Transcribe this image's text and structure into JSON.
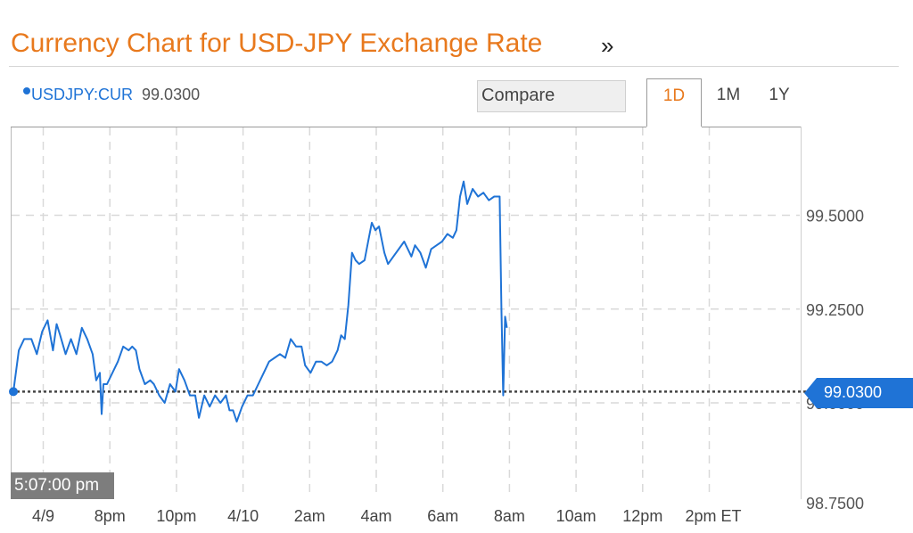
{
  "header": {
    "title": "Currency Chart for USD-JPY Exchange Rate",
    "more_icon": "double-chevron-right-icon"
  },
  "legend": {
    "symbol": "USDJPY:CUR",
    "value": "99.0300"
  },
  "toolbar": {
    "compare_label": "Compare",
    "tabs": [
      {
        "label": "1D",
        "active": true
      },
      {
        "label": "1M",
        "active": false
      },
      {
        "label": "1Y",
        "active": false
      }
    ]
  },
  "time_badge": "5:07:00 pm",
  "last_price": "99.0300",
  "colors": {
    "accent": "#e8791d",
    "series": "#1f73d6",
    "grid": "#d9d9d9"
  },
  "chart_data": {
    "type": "line",
    "title": "",
    "xlabel": "",
    "ylabel": "",
    "x_ticks": [
      "4/9",
      "8pm",
      "10pm",
      "4/10",
      "2am",
      "4am",
      "6am",
      "8am",
      "10am",
      "12pm",
      "2pm ET"
    ],
    "y_ticks": [
      "99.5000",
      "99.2500",
      "99.0000",
      "98.7500"
    ],
    "ylim": [
      98.75,
      99.7
    ],
    "grid": true,
    "reference_line": 99.03,
    "series": [
      {
        "values": [
          [
            0,
            99.03
          ],
          [
            0.15,
            99.14
          ],
          [
            0.3,
            99.17
          ],
          [
            0.5,
            99.17
          ],
          [
            0.65,
            99.13
          ],
          [
            0.8,
            99.19
          ],
          [
            0.95,
            99.22
          ],
          [
            1.1,
            99.14
          ],
          [
            1.2,
            99.21
          ],
          [
            1.3,
            99.18
          ],
          [
            1.45,
            99.13
          ],
          [
            1.6,
            99.17
          ],
          [
            1.75,
            99.13
          ],
          [
            1.9,
            99.2
          ],
          [
            2.05,
            99.17
          ],
          [
            2.2,
            99.13
          ],
          [
            2.3,
            99.06
          ],
          [
            2.4,
            99.08
          ],
          [
            2.45,
            98.97
          ],
          [
            2.5,
            99.05
          ],
          [
            2.6,
            99.05
          ],
          [
            2.75,
            99.08
          ],
          [
            2.9,
            99.11
          ],
          [
            3.05,
            99.15
          ],
          [
            3.2,
            99.14
          ],
          [
            3.3,
            99.15
          ],
          [
            3.4,
            99.14
          ],
          [
            3.5,
            99.09
          ],
          [
            3.65,
            99.05
          ],
          [
            3.8,
            99.06
          ],
          [
            3.9,
            99.05
          ],
          [
            4.05,
            99.02
          ],
          [
            4.2,
            99.0
          ],
          [
            4.35,
            99.05
          ],
          [
            4.5,
            99.03
          ],
          [
            4.6,
            99.09
          ],
          [
            4.75,
            99.06
          ],
          [
            4.9,
            99.02
          ],
          [
            5.05,
            99.02
          ],
          [
            5.15,
            98.96
          ],
          [
            5.3,
            99.02
          ],
          [
            5.45,
            98.99
          ],
          [
            5.6,
            99.02
          ],
          [
            5.75,
            99.0
          ],
          [
            5.9,
            99.02
          ],
          [
            6.0,
            98.98
          ],
          [
            6.1,
            98.98
          ],
          [
            6.2,
            98.95
          ],
          [
            6.35,
            98.99
          ],
          [
            6.5,
            99.02
          ],
          [
            6.65,
            99.02
          ],
          [
            6.8,
            99.05
          ],
          [
            6.95,
            99.08
          ],
          [
            7.1,
            99.11
          ],
          [
            7.25,
            99.12
          ],
          [
            7.4,
            99.13
          ],
          [
            7.55,
            99.12
          ],
          [
            7.7,
            99.17
          ],
          [
            7.85,
            99.15
          ],
          [
            8.0,
            99.15
          ],
          [
            8.1,
            99.1
          ],
          [
            8.25,
            99.08
          ],
          [
            8.4,
            99.11
          ],
          [
            8.55,
            99.11
          ],
          [
            8.7,
            99.1
          ],
          [
            8.85,
            99.11
          ],
          [
            9.0,
            99.14
          ],
          [
            9.1,
            99.18
          ],
          [
            9.2,
            99.17
          ],
          [
            9.3,
            99.26
          ],
          [
            9.4,
            99.4
          ],
          [
            9.5,
            99.38
          ],
          [
            9.6,
            99.37
          ],
          [
            9.75,
            99.38
          ],
          [
            9.85,
            99.43
          ],
          [
            9.95,
            99.48
          ],
          [
            10.05,
            99.46
          ],
          [
            10.15,
            99.47
          ],
          [
            10.3,
            99.4
          ],
          [
            10.4,
            99.37
          ],
          [
            10.55,
            99.39
          ],
          [
            10.7,
            99.41
          ],
          [
            10.85,
            99.43
          ],
          [
            10.95,
            99.41
          ],
          [
            11.05,
            99.39
          ],
          [
            11.15,
            99.42
          ],
          [
            11.3,
            99.4
          ],
          [
            11.45,
            99.36
          ],
          [
            11.6,
            99.41
          ],
          [
            11.75,
            99.42
          ],
          [
            11.9,
            99.43
          ],
          [
            12.05,
            99.45
          ],
          [
            12.2,
            99.44
          ],
          [
            12.3,
            99.46
          ],
          [
            12.4,
            99.55
          ],
          [
            12.5,
            99.59
          ],
          [
            12.6,
            99.53
          ],
          [
            12.75,
            99.57
          ],
          [
            12.9,
            99.55
          ],
          [
            13.05,
            99.56
          ],
          [
            13.2,
            99.54
          ],
          [
            13.35,
            99.55
          ],
          [
            13.5,
            99.55
          ],
          [
            13.55,
            99.25
          ],
          [
            13.6,
            99.02
          ],
          [
            13.65,
            99.23
          ],
          [
            13.7,
            99.2
          ]
        ]
      }
    ]
  }
}
